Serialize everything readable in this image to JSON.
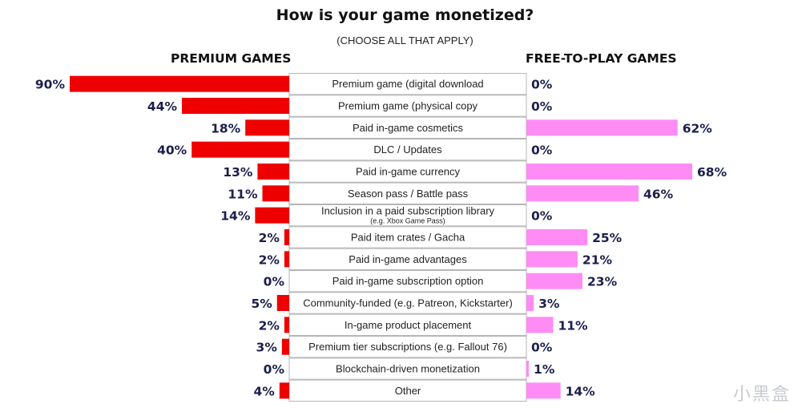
{
  "title": "How is your game monetized?",
  "subtitle": "(CHOOSE ALL THAT APPLY)",
  "watermark": "小黑盒",
  "colors": {
    "premium": "#ee0000",
    "f2p": "#ff8cf5",
    "label_text": "#222222",
    "value_text": "#1b1f4b",
    "box_border": "#b5b5b5"
  },
  "chart_data": {
    "type": "bar",
    "orientation": "horizontal-butterfly",
    "title": "How is your game monetized?",
    "subtitle": "(CHOOSE ALL THAT APPLY)",
    "categories": [
      {
        "label": "Premium game (digital download",
        "sublabel": ""
      },
      {
        "label": "Premium game (physical copy",
        "sublabel": ""
      },
      {
        "label": "Paid in-game cosmetics",
        "sublabel": ""
      },
      {
        "label": "DLC / Updates",
        "sublabel": ""
      },
      {
        "label": "Paid in-game currency",
        "sublabel": ""
      },
      {
        "label": "Season pass / Battle pass",
        "sublabel": ""
      },
      {
        "label": "Inclusion in a paid subscription library",
        "sublabel": "(e.g. Xbox Game Pass)"
      },
      {
        "label": "Paid item crates / Gacha",
        "sublabel": ""
      },
      {
        "label": "Paid in-game advantages",
        "sublabel": ""
      },
      {
        "label": "Paid in-game subscription option",
        "sublabel": ""
      },
      {
        "label": "Community-funded (e.g. Patreon, Kickstarter)",
        "sublabel": ""
      },
      {
        "label": "In-game product placement",
        "sublabel": ""
      },
      {
        "label": "Premium tier subscriptions (e.g. Fallout 76)",
        "sublabel": ""
      },
      {
        "label": "Blockchain-driven monetization",
        "sublabel": ""
      },
      {
        "label": "Other",
        "sublabel": ""
      }
    ],
    "series": [
      {
        "name": "PREMIUM GAMES",
        "side": "left",
        "values": [
          90,
          44,
          18,
          40,
          13,
          11,
          14,
          2,
          2,
          0,
          5,
          2,
          3,
          0,
          4
        ],
        "labels": [
          "90%",
          "44%",
          "18%",
          "40%",
          "13%",
          "11%",
          "14%",
          "2%",
          "2%",
          "0%",
          "5%",
          "2%",
          "3%",
          "0%",
          "4%"
        ]
      },
      {
        "name": "FREE-TO-PLAY GAMES",
        "side": "right",
        "values": [
          0,
          0,
          62,
          0,
          68,
          46,
          0,
          25,
          21,
          23,
          3,
          11,
          0,
          1,
          14
        ],
        "labels": [
          "0%",
          "0%",
          "62%",
          "0%",
          "68%",
          "46%",
          "0%",
          "25%",
          "21%",
          "23%",
          "3%",
          "11%",
          "0%",
          "1%",
          "14%"
        ]
      }
    ],
    "xlim": [
      0,
      90
    ],
    "unit": "%"
  }
}
